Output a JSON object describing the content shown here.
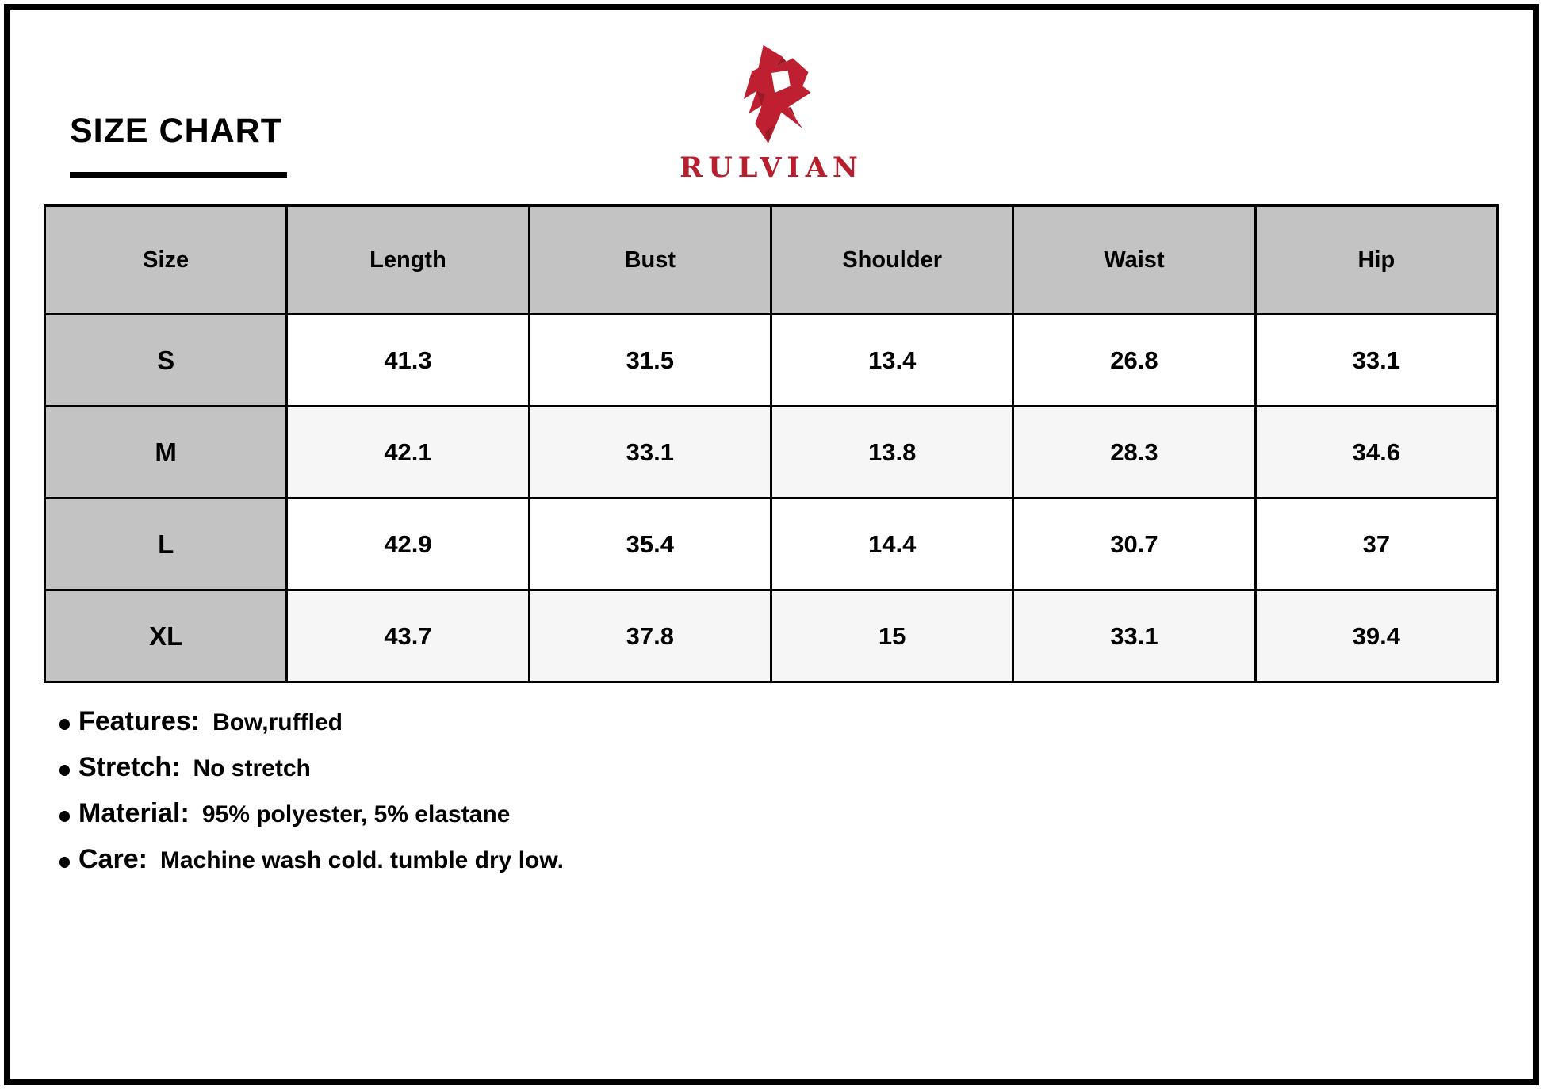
{
  "page": {
    "title": "SIZE CHART"
  },
  "brand": {
    "name": "RULVIAN",
    "logo_icon": "rulvian-r-logo",
    "accent_red": "#be2032",
    "accent_red_dark": "#9c1a28"
  },
  "size_table": {
    "columns": [
      "Size",
      "Length",
      "Bust",
      "Shoulder",
      "Waist",
      "Hip"
    ],
    "rows": [
      {
        "size": "S",
        "values": [
          "41.3",
          "31.5",
          "13.4",
          "26.8",
          "33.1"
        ]
      },
      {
        "size": "M",
        "values": [
          "42.1",
          "33.1",
          "13.8",
          "28.3",
          "34.6"
        ]
      },
      {
        "size": "L",
        "values": [
          "42.9",
          "35.4",
          "14.4",
          "30.7",
          "37"
        ]
      },
      {
        "size": "XL",
        "values": [
          "43.7",
          "37.8",
          "15",
          "33.1",
          "39.4"
        ]
      }
    ]
  },
  "details": [
    {
      "label": "Features:",
      "value": "Bow,ruffled"
    },
    {
      "label": "Stretch:",
      "value": "No stretch"
    },
    {
      "label": "Material:",
      "value": "95% polyester, 5% elastane"
    },
    {
      "label": "Care:",
      "value": "Machine wash cold. tumble dry low."
    }
  ],
  "colors": {
    "table_header_bg": "#c3c3c3",
    "table_alt_row_bg": "#f6f6f6",
    "table_border": "#000000",
    "text": "#000000"
  }
}
